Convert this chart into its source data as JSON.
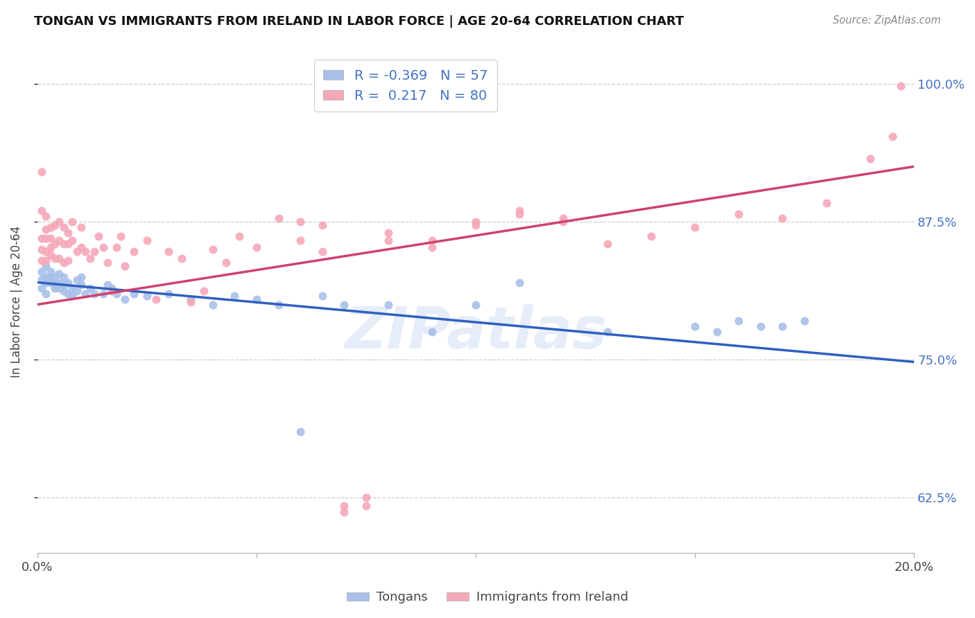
{
  "title": "TONGAN VS IMMIGRANTS FROM IRELAND IN LABOR FORCE | AGE 20-64 CORRELATION CHART",
  "source": "Source: ZipAtlas.com",
  "ylabel": "In Labor Force | Age 20-64",
  "xlim": [
    0.0,
    0.2
  ],
  "ylim": [
    0.575,
    1.03
  ],
  "yticks": [
    0.625,
    0.75,
    0.875,
    1.0
  ],
  "yticklabels_right": [
    "62.5%",
    "75.0%",
    "87.5%",
    "100.0%"
  ],
  "blue_color": "#a8c0e8",
  "pink_color": "#f5a8b8",
  "blue_line_color": "#3060c0",
  "pink_line_color": "#d04070",
  "legend_R_blue": "-0.369",
  "legend_N_blue": "57",
  "legend_R_pink": "0.217",
  "legend_N_pink": "80",
  "watermark": "ZIPatlas",
  "blue_line_x0": 0.0,
  "blue_line_y0": 0.82,
  "blue_line_x1": 0.2,
  "blue_line_y1": 0.748,
  "pink_line_x0": 0.0,
  "pink_line_y0": 0.8,
  "pink_line_x1": 0.2,
  "pink_line_y1": 0.925,
  "blue_x": [
    0.001,
    0.001,
    0.001,
    0.002,
    0.002,
    0.002,
    0.002,
    0.003,
    0.003,
    0.003,
    0.004,
    0.004,
    0.004,
    0.005,
    0.005,
    0.005,
    0.006,
    0.006,
    0.006,
    0.007,
    0.007,
    0.008,
    0.008,
    0.009,
    0.009,
    0.01,
    0.01,
    0.011,
    0.012,
    0.013,
    0.015,
    0.016,
    0.017,
    0.018,
    0.02,
    0.022,
    0.025,
    0.03,
    0.035,
    0.04,
    0.045,
    0.05,
    0.055,
    0.06,
    0.065,
    0.07,
    0.08,
    0.09,
    0.1,
    0.11,
    0.13,
    0.15,
    0.16,
    0.17,
    0.175,
    0.155,
    0.165
  ],
  "blue_y": [
    0.823,
    0.83,
    0.815,
    0.825,
    0.82,
    0.81,
    0.835,
    0.83,
    0.82,
    0.825,
    0.818,
    0.825,
    0.815,
    0.82,
    0.828,
    0.815,
    0.825,
    0.818,
    0.812,
    0.82,
    0.81,
    0.815,
    0.808,
    0.822,
    0.812,
    0.818,
    0.825,
    0.81,
    0.815,
    0.81,
    0.81,
    0.818,
    0.815,
    0.81,
    0.805,
    0.81,
    0.808,
    0.81,
    0.805,
    0.8,
    0.808,
    0.805,
    0.8,
    0.685,
    0.808,
    0.8,
    0.8,
    0.775,
    0.8,
    0.82,
    0.775,
    0.78,
    0.785,
    0.78,
    0.785,
    0.775,
    0.78
  ],
  "pink_x": [
    0.001,
    0.001,
    0.001,
    0.001,
    0.001,
    0.002,
    0.002,
    0.002,
    0.002,
    0.002,
    0.003,
    0.003,
    0.003,
    0.003,
    0.004,
    0.004,
    0.004,
    0.005,
    0.005,
    0.005,
    0.006,
    0.006,
    0.006,
    0.007,
    0.007,
    0.007,
    0.008,
    0.008,
    0.009,
    0.01,
    0.01,
    0.011,
    0.012,
    0.013,
    0.014,
    0.015,
    0.016,
    0.017,
    0.018,
    0.019,
    0.02,
    0.022,
    0.025,
    0.027,
    0.03,
    0.033,
    0.035,
    0.038,
    0.04,
    0.043,
    0.046,
    0.05,
    0.055,
    0.06,
    0.065,
    0.07,
    0.075,
    0.08,
    0.09,
    0.1,
    0.11,
    0.12,
    0.13,
    0.14,
    0.15,
    0.16,
    0.17,
    0.18,
    0.19,
    0.195,
    0.197,
    0.06,
    0.065,
    0.07,
    0.075,
    0.08,
    0.09,
    0.1,
    0.11,
    0.12
  ],
  "pink_y": [
    0.85,
    0.885,
    0.92,
    0.86,
    0.84,
    0.86,
    0.88,
    0.848,
    0.868,
    0.84,
    0.852,
    0.87,
    0.845,
    0.86,
    0.855,
    0.872,
    0.842,
    0.858,
    0.875,
    0.842,
    0.855,
    0.87,
    0.838,
    0.855,
    0.84,
    0.865,
    0.858,
    0.875,
    0.848,
    0.852,
    0.87,
    0.848,
    0.842,
    0.848,
    0.862,
    0.852,
    0.838,
    0.812,
    0.852,
    0.862,
    0.835,
    0.848,
    0.858,
    0.805,
    0.848,
    0.842,
    0.802,
    0.812,
    0.85,
    0.838,
    0.862,
    0.852,
    0.878,
    0.875,
    0.848,
    0.618,
    0.625,
    0.858,
    0.852,
    0.872,
    0.882,
    0.875,
    0.855,
    0.862,
    0.87,
    0.882,
    0.878,
    0.892,
    0.932,
    0.952,
    0.998,
    0.858,
    0.872,
    0.612,
    0.618,
    0.865,
    0.858,
    0.875,
    0.885,
    0.878
  ]
}
